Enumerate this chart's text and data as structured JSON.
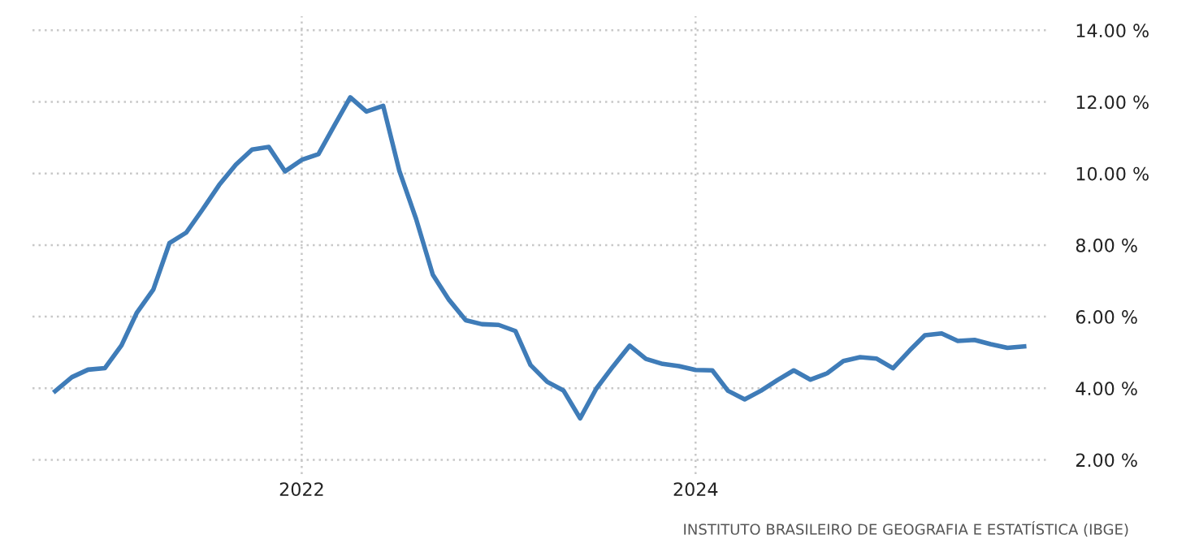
{
  "chart_data": {
    "type": "line",
    "x": [
      "2020-10",
      "2020-11",
      "2020-12",
      "2021-01",
      "2021-02",
      "2021-03",
      "2021-04",
      "2021-05",
      "2021-06",
      "2021-07",
      "2021-08",
      "2021-09",
      "2021-10",
      "2021-11",
      "2021-12",
      "2022-01",
      "2022-02",
      "2022-03",
      "2022-04",
      "2022-05",
      "2022-06",
      "2022-07",
      "2022-08",
      "2022-09",
      "2022-10",
      "2022-11",
      "2022-12",
      "2023-01",
      "2023-02",
      "2023-03",
      "2023-04",
      "2023-05",
      "2023-06",
      "2023-07",
      "2023-08",
      "2023-09",
      "2023-10",
      "2023-11",
      "2023-12",
      "2024-01",
      "2024-02",
      "2024-03",
      "2024-04",
      "2024-05",
      "2024-06",
      "2024-07",
      "2024-08",
      "2024-09",
      "2024-10",
      "2024-11",
      "2024-12",
      "2025-01",
      "2025-02",
      "2025-03",
      "2025-04",
      "2025-05",
      "2025-06",
      "2025-07",
      "2025-08",
      "2025-09"
    ],
    "series": [
      {
        "color": "#3f7cb8",
        "values": [
          3.92,
          4.31,
          4.52,
          4.56,
          5.2,
          6.1,
          6.76,
          8.06,
          8.35,
          8.99,
          9.68,
          10.25,
          10.67,
          10.74,
          10.06,
          10.38,
          10.54,
          11.3,
          12.13,
          11.73,
          11.89,
          10.07,
          8.73,
          7.17,
          6.47,
          5.9,
          5.79,
          5.77,
          5.6,
          4.65,
          4.18,
          3.94,
          3.16,
          3.99,
          4.61,
          5.19,
          4.82,
          4.68,
          4.62,
          4.51,
          4.5,
          3.93,
          3.69,
          3.93,
          4.23,
          4.5,
          4.24,
          4.42,
          4.76,
          4.87,
          4.83,
          4.56,
          5.06,
          5.48,
          5.53,
          5.32,
          5.35,
          5.23,
          5.13,
          5.17
        ]
      }
    ],
    "xlim": [
      "2020-08-20",
      "2025-10-15"
    ],
    "xticks": [
      {
        "value": "2022-01",
        "label": "2022"
      },
      {
        "value": "2024-01",
        "label": "2024"
      }
    ],
    "ylim": [
      1.6,
      14.4
    ],
    "yticks": [
      {
        "value": 2,
        "label": "2.00 %"
      },
      {
        "value": 4,
        "label": "4.00 %"
      },
      {
        "value": 6,
        "label": "6.00 %"
      },
      {
        "value": 8,
        "label": "8.00 %"
      },
      {
        "value": 10,
        "label": "10.00 %"
      },
      {
        "value": 12,
        "label": "12.00 %"
      },
      {
        "value": 14,
        "label": "14.00 %"
      }
    ],
    "grid": true,
    "annotations": [
      "INSTITUTO BRASILEIRO DE GEOGRAFIA E ESTATÍSTICA (IBGE)"
    ]
  }
}
